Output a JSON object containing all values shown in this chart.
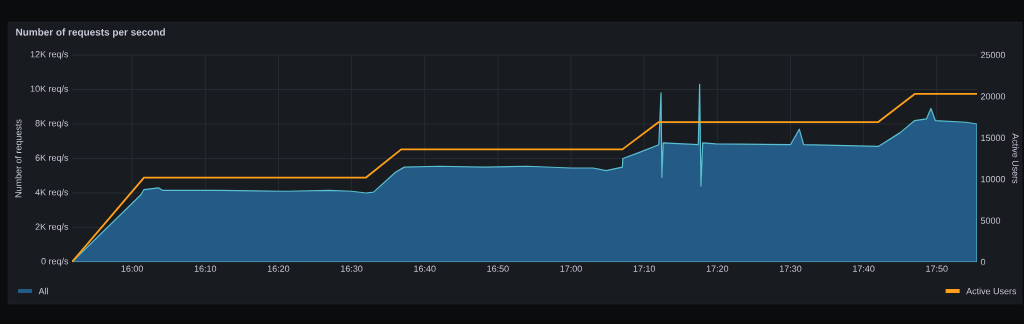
{
  "chart_data": {
    "type": "area",
    "title": "Number of requests per second",
    "ylabel": "Number of requests",
    "y2label": "Active Users",
    "xlim": [
      15.863,
      17.925
    ],
    "ylim": [
      0,
      12000
    ],
    "y2lim": [
      0,
      25000
    ],
    "xticks": [
      {
        "value": 16,
        "label": "16:00"
      },
      {
        "value": 16.1667,
        "label": "16:10"
      },
      {
        "value": 16.3333,
        "label": "16:20"
      },
      {
        "value": 16.5,
        "label": "16:30"
      },
      {
        "value": 16.6667,
        "label": "16:40"
      },
      {
        "value": 16.8333,
        "label": "16:50"
      },
      {
        "value": 17,
        "label": "17:00"
      },
      {
        "value": 17.1667,
        "label": "17:10"
      },
      {
        "value": 17.3333,
        "label": "17:20"
      },
      {
        "value": 17.5,
        "label": "17:30"
      },
      {
        "value": 17.6667,
        "label": "17:40"
      },
      {
        "value": 17.8333,
        "label": "17:50"
      }
    ],
    "yticks": [
      {
        "value": 0,
        "label": "0 req/s"
      },
      {
        "value": 2000,
        "label": "2K req/s"
      },
      {
        "value": 4000,
        "label": "4K req/s"
      },
      {
        "value": 6000,
        "label": "6K req/s"
      },
      {
        "value": 8000,
        "label": "8K req/s"
      },
      {
        "value": 10000,
        "label": "10K req/s"
      },
      {
        "value": 12000,
        "label": "12K req/s"
      }
    ],
    "y2ticks": [
      0,
      5000,
      10000,
      15000,
      20000,
      25000
    ],
    "grid": true,
    "legend": "bottom",
    "series": [
      {
        "name": "All",
        "color": "#245a86",
        "x": [
          15.863,
          16.02,
          16.027,
          16.06,
          16.07,
          16.2,
          16.35,
          16.45,
          16.5,
          16.533,
          16.55,
          16.6,
          16.62,
          16.7,
          16.8,
          16.9,
          17.0,
          17.05,
          17.08,
          17.117,
          17.118,
          17.15,
          17.2,
          17.205,
          17.207,
          17.21,
          17.25,
          17.29,
          17.293,
          17.296,
          17.3,
          17.33,
          17.5,
          17.52,
          17.53,
          17.7,
          17.75,
          17.783,
          17.81,
          17.82,
          17.83,
          17.9,
          17.925
        ],
        "values": [
          0,
          3900,
          4200,
          4300,
          4150,
          4150,
          4100,
          4150,
          4100,
          4000,
          4050,
          5200,
          5500,
          5550,
          5500,
          5550,
          5450,
          5450,
          5300,
          5500,
          6000,
          6300,
          6800,
          9800,
          4900,
          6900,
          6850,
          6800,
          10300,
          4400,
          6900,
          6850,
          6800,
          7700,
          6800,
          6700,
          7500,
          8200,
          8300,
          8900,
          8200,
          8100,
          8000
        ]
      },
      {
        "name": "Active Users",
        "type": "line",
        "axis": "y2",
        "color": "#ff9f1a",
        "x": [
          15.863,
          16.027,
          16.533,
          16.613,
          17.117,
          17.2,
          17.7,
          17.783,
          17.925
        ],
        "values": [
          0,
          10200,
          10200,
          13600,
          13600,
          16900,
          16900,
          20300,
          20300
        ]
      }
    ]
  }
}
